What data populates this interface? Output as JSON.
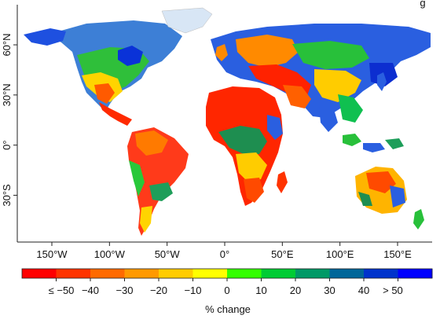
{
  "map": {
    "title_partial": "g",
    "longitude_ticks": [
      {
        "value": -150,
        "label": "150°W"
      },
      {
        "value": -100,
        "label": "100°W"
      },
      {
        "value": -50,
        "label": "50°W"
      },
      {
        "value": 0,
        "label": "0°"
      },
      {
        "value": 50,
        "label": "50°E"
      },
      {
        "value": 100,
        "label": "100°E"
      },
      {
        "value": 150,
        "label": "150°E"
      }
    ],
    "latitude_ticks": [
      {
        "value": 60,
        "label": "60°N"
      },
      {
        "value": 30,
        "label": "30°N"
      },
      {
        "value": 0,
        "label": "0°"
      },
      {
        "value": -30,
        "label": "30°S"
      }
    ],
    "lon_range": [
      -180,
      180
    ],
    "lat_range": [
      -58,
      84
    ]
  },
  "legend": {
    "title": "% change",
    "tick_labels": [
      "≤ −50",
      "−40",
      "−30",
      "−20",
      "−10",
      "0",
      "10",
      "20",
      "30",
      "40",
      "> 50"
    ],
    "colors": [
      "#ff0000",
      "#ff3300",
      "#ff6a00",
      "#ff9900",
      "#ffcc00",
      "#ffff00",
      "#33ff00",
      "#00cc33",
      "#009966",
      "#006699",
      "#0033cc",
      "#0000ff"
    ]
  }
}
